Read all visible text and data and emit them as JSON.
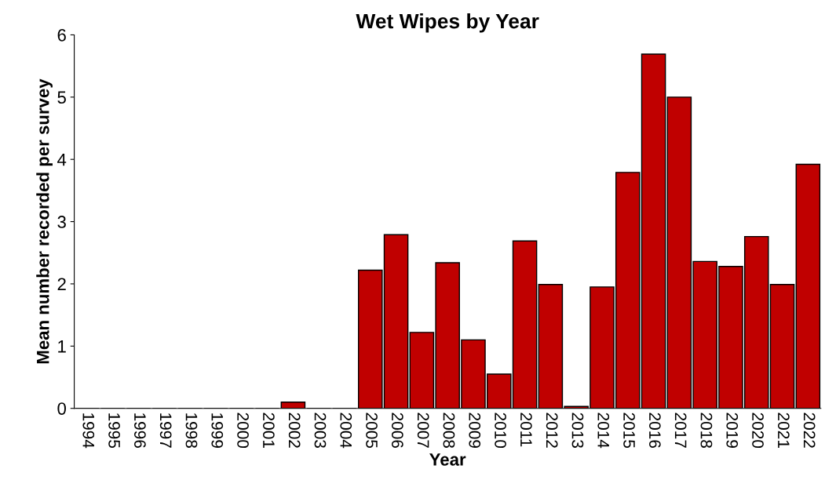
{
  "chart_data": {
    "type": "bar",
    "title": "Wet Wipes by Year",
    "xlabel": "Year",
    "ylabel": "Mean number recorded per survey",
    "categories": [
      "1994",
      "1995",
      "1996",
      "1997",
      "1998",
      "1999",
      "2000",
      "2001",
      "2002",
      "2003",
      "2004",
      "2005",
      "2006",
      "2007",
      "2008",
      "2009",
      "2010",
      "2011",
      "2012",
      "2013",
      "2014",
      "2015",
      "2016",
      "2017",
      "2018",
      "2019",
      "2020",
      "2021",
      "2022"
    ],
    "values": [
      0,
      0,
      0,
      0,
      0,
      0,
      0,
      0,
      0.1,
      0,
      0,
      2.22,
      2.79,
      1.22,
      2.34,
      1.1,
      0.55,
      2.69,
      1.99,
      0.03,
      1.95,
      3.79,
      5.69,
      5.0,
      2.36,
      2.28,
      2.76,
      1.99,
      3.92
    ],
    "color": "#c00000",
    "ylim": [
      0,
      6
    ],
    "yticks": [
      0,
      1,
      2,
      3,
      4,
      5,
      6
    ],
    "grid": false,
    "legend": false
  }
}
